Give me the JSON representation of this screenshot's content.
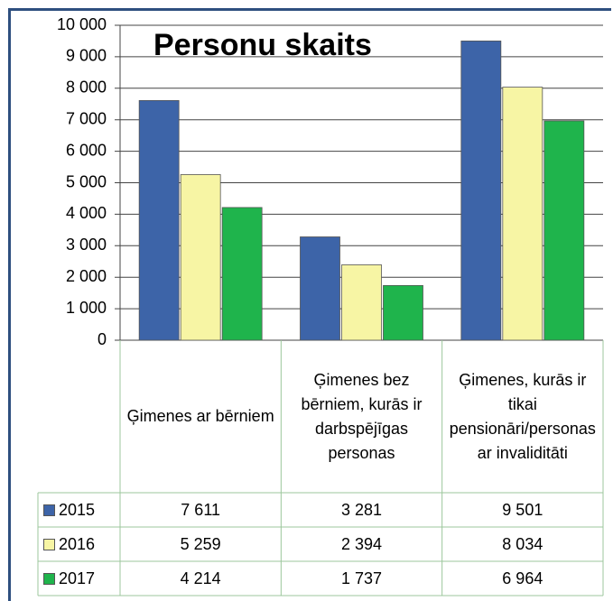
{
  "chart_data": {
    "type": "bar",
    "title": "Personu skaits",
    "categories": [
      "Ģimenes ar bērniem",
      "Ģimenes bez bērniem, kurās ir darbspējīgas personas",
      "Ģimenes, kurās ir tikai pensionāri/personas ar invaliditāti"
    ],
    "series": [
      {
        "name": "2015",
        "color": "#3d64a8",
        "values": [
          7611,
          3281,
          9501
        ],
        "value_labels": [
          "7 611",
          "3 281",
          "9 501"
        ]
      },
      {
        "name": "2016",
        "color": "#f7f5a4",
        "values": [
          5259,
          2394,
          8034
        ],
        "value_labels": [
          "5 259",
          "2 394",
          "8 034"
        ]
      },
      {
        "name": "2017",
        "color": "#1fb44c",
        "values": [
          4214,
          1737,
          6964
        ],
        "value_labels": [
          "4 214",
          "1 737",
          "6 964"
        ]
      }
    ],
    "ylim": [
      0,
      10000
    ],
    "yticks": [
      0,
      {
        "value": 1000,
        "label": "1 000"
      },
      {
        "value": 2000,
        "label": "2 000"
      },
      {
        "value": 3000,
        "label": "3 000"
      },
      {
        "value": 4000,
        "label": "4 000"
      },
      {
        "value": 5000,
        "label": "5 000"
      },
      {
        "value": 6000,
        "label": "6 000"
      },
      {
        "value": 7000,
        "label": "7 000"
      },
      {
        "value": 8000,
        "label": "8 000"
      },
      {
        "value": 9000,
        "label": "9 000"
      },
      {
        "value": 10000,
        "label": "10 000"
      }
    ],
    "grid": true
  }
}
